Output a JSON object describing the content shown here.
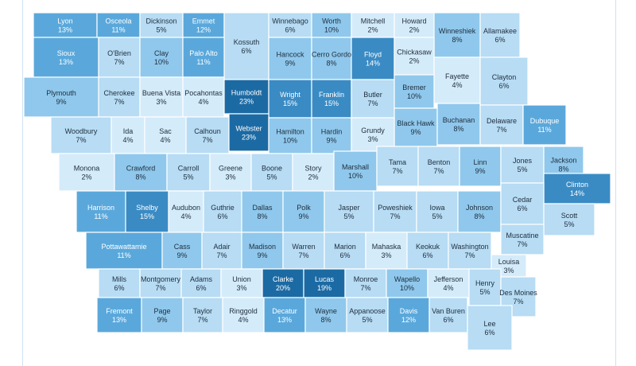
{
  "colors": {
    "background": "#ffffff",
    "text_dark": "#1f2d3d",
    "text_light": "#ffffff",
    "scale": [
      "#d4ebfa",
      "#b7dcf4",
      "#8fc8ec",
      "#5aa8db",
      "#3a8bc4",
      "#1c6aa3"
    ]
  },
  "counties": [
    {
      "name": "Lyon",
      "value": "13%",
      "pct": 13
    },
    {
      "name": "Osceola",
      "value": "11%",
      "pct": 11
    },
    {
      "name": "Dickinson",
      "value": "5%",
      "pct": 5
    },
    {
      "name": "Emmet",
      "value": "12%",
      "pct": 12
    },
    {
      "name": "Kossuth",
      "value": "6%",
      "pct": 6
    },
    {
      "name": "Winnebago",
      "value": "6%",
      "pct": 6
    },
    {
      "name": "Worth",
      "value": "10%",
      "pct": 10
    },
    {
      "name": "Mitchell",
      "value": "2%",
      "pct": 2
    },
    {
      "name": "Howard",
      "value": "2%",
      "pct": 2
    },
    {
      "name": "Winneshiek",
      "value": "8%",
      "pct": 8
    },
    {
      "name": "Allamakee",
      "value": "6%",
      "pct": 6
    },
    {
      "name": "Sioux",
      "value": "13%",
      "pct": 13
    },
    {
      "name": "O'Brien",
      "value": "7%",
      "pct": 7
    },
    {
      "name": "Clay",
      "value": "10%",
      "pct": 10
    },
    {
      "name": "Palo Alto",
      "value": "11%",
      "pct": 11
    },
    {
      "name": "Hancock",
      "value": "9%",
      "pct": 9
    },
    {
      "name": "Cerro Gordo",
      "value": "8%",
      "pct": 8
    },
    {
      "name": "Floyd",
      "value": "14%",
      "pct": 14
    },
    {
      "name": "Chickasaw",
      "value": "2%",
      "pct": 2
    },
    {
      "name": "Fayette",
      "value": "4%",
      "pct": 4
    },
    {
      "name": "Clayton",
      "value": "6%",
      "pct": 6
    },
    {
      "name": "Plymouth",
      "value": "9%",
      "pct": 9
    },
    {
      "name": "Cherokee",
      "value": "7%",
      "pct": 7
    },
    {
      "name": "Buena Vista",
      "value": "3%",
      "pct": 3
    },
    {
      "name": "Pocahontas",
      "value": "4%",
      "pct": 4
    },
    {
      "name": "Humboldt",
      "value": "23%",
      "pct": 23
    },
    {
      "name": "Wright",
      "value": "15%",
      "pct": 15
    },
    {
      "name": "Franklin",
      "value": "15%",
      "pct": 15
    },
    {
      "name": "Butler",
      "value": "7%",
      "pct": 7
    },
    {
      "name": "Bremer",
      "value": "10%",
      "pct": 10
    },
    {
      "name": "Black Hawk",
      "value": "9%",
      "pct": 9
    },
    {
      "name": "Buchanan",
      "value": "8%",
      "pct": 8
    },
    {
      "name": "Delaware",
      "value": "7%",
      "pct": 7
    },
    {
      "name": "Dubuque",
      "value": "11%",
      "pct": 11
    },
    {
      "name": "Woodbury",
      "value": "7%",
      "pct": 7
    },
    {
      "name": "Ida",
      "value": "4%",
      "pct": 4
    },
    {
      "name": "Sac",
      "value": "4%",
      "pct": 4
    },
    {
      "name": "Calhoun",
      "value": "7%",
      "pct": 7
    },
    {
      "name": "Webster",
      "value": "23%",
      "pct": 23
    },
    {
      "name": "Hamilton",
      "value": "10%",
      "pct": 10
    },
    {
      "name": "Hardin",
      "value": "9%",
      "pct": 9
    },
    {
      "name": "Grundy",
      "value": "3%",
      "pct": 3
    },
    {
      "name": "Monona",
      "value": "2%",
      "pct": 2
    },
    {
      "name": "Crawford",
      "value": "8%",
      "pct": 8
    },
    {
      "name": "Carroll",
      "value": "5%",
      "pct": 5
    },
    {
      "name": "Greene",
      "value": "3%",
      "pct": 3
    },
    {
      "name": "Boone",
      "value": "5%",
      "pct": 5
    },
    {
      "name": "Story",
      "value": "2%",
      "pct": 2
    },
    {
      "name": "Marshall",
      "value": "10%",
      "pct": 10
    },
    {
      "name": "Tama",
      "value": "7%",
      "pct": 7
    },
    {
      "name": "Benton",
      "value": "7%",
      "pct": 7
    },
    {
      "name": "Linn",
      "value": "9%",
      "pct": 9
    },
    {
      "name": "Jones",
      "value": "5%",
      "pct": 5
    },
    {
      "name": "Jackson",
      "value": "8%",
      "pct": 8
    },
    {
      "name": "Clinton",
      "value": "14%",
      "pct": 14
    },
    {
      "name": "Harrison",
      "value": "11%",
      "pct": 11
    },
    {
      "name": "Shelby",
      "value": "15%",
      "pct": 15
    },
    {
      "name": "Audubon",
      "value": "4%",
      "pct": 4
    },
    {
      "name": "Guthrie",
      "value": "6%",
      "pct": 6
    },
    {
      "name": "Dallas",
      "value": "8%",
      "pct": 8
    },
    {
      "name": "Polk",
      "value": "9%",
      "pct": 9
    },
    {
      "name": "Jasper",
      "value": "5%",
      "pct": 5
    },
    {
      "name": "Poweshiek",
      "value": "7%",
      "pct": 7
    },
    {
      "name": "Iowa",
      "value": "5%",
      "pct": 5
    },
    {
      "name": "Johnson",
      "value": "8%",
      "pct": 8
    },
    {
      "name": "Cedar",
      "value": "6%",
      "pct": 6
    },
    {
      "name": "Scott",
      "value": "5%",
      "pct": 5
    },
    {
      "name": "Muscatine",
      "value": "7%",
      "pct": 7
    },
    {
      "name": "Pottawattamie",
      "value": "11%",
      "pct": 11
    },
    {
      "name": "Cass",
      "value": "9%",
      "pct": 9
    },
    {
      "name": "Adair",
      "value": "7%",
      "pct": 7
    },
    {
      "name": "Madison",
      "value": "9%",
      "pct": 9
    },
    {
      "name": "Warren",
      "value": "7%",
      "pct": 7
    },
    {
      "name": "Marion",
      "value": "6%",
      "pct": 6
    },
    {
      "name": "Mahaska",
      "value": "3%",
      "pct": 3
    },
    {
      "name": "Keokuk",
      "value": "6%",
      "pct": 6
    },
    {
      "name": "Washington",
      "value": "7%",
      "pct": 7
    },
    {
      "name": "Louisa",
      "value": "3%",
      "pct": 3
    },
    {
      "name": "Mills",
      "value": "6%",
      "pct": 6
    },
    {
      "name": "Montgomery",
      "value": "7%",
      "pct": 7
    },
    {
      "name": "Adams",
      "value": "6%",
      "pct": 6
    },
    {
      "name": "Union",
      "value": "3%",
      "pct": 3
    },
    {
      "name": "Clarke",
      "value": "20%",
      "pct": 20
    },
    {
      "name": "Lucas",
      "value": "19%",
      "pct": 19
    },
    {
      "name": "Monroe",
      "value": "7%",
      "pct": 7
    },
    {
      "name": "Wapello",
      "value": "10%",
      "pct": 10
    },
    {
      "name": "Jefferson",
      "value": "4%",
      "pct": 4
    },
    {
      "name": "Henry",
      "value": "5%",
      "pct": 5
    },
    {
      "name": "Des Moines",
      "value": "7%",
      "pct": 7
    },
    {
      "name": "Fremont",
      "value": "13%",
      "pct": 13
    },
    {
      "name": "Page",
      "value": "9%",
      "pct": 9
    },
    {
      "name": "Taylor",
      "value": "7%",
      "pct": 7
    },
    {
      "name": "Ringgold",
      "value": "4%",
      "pct": 4
    },
    {
      "name": "Decatur",
      "value": "13%",
      "pct": 13
    },
    {
      "name": "Wayne",
      "value": "8%",
      "pct": 8
    },
    {
      "name": "Appanoose",
      "value": "5%",
      "pct": 5
    },
    {
      "name": "Davis",
      "value": "12%",
      "pct": 12
    },
    {
      "name": "Van Buren",
      "value": "6%",
      "pct": 6
    },
    {
      "name": "Lee",
      "value": "6%",
      "pct": 6
    }
  ]
}
